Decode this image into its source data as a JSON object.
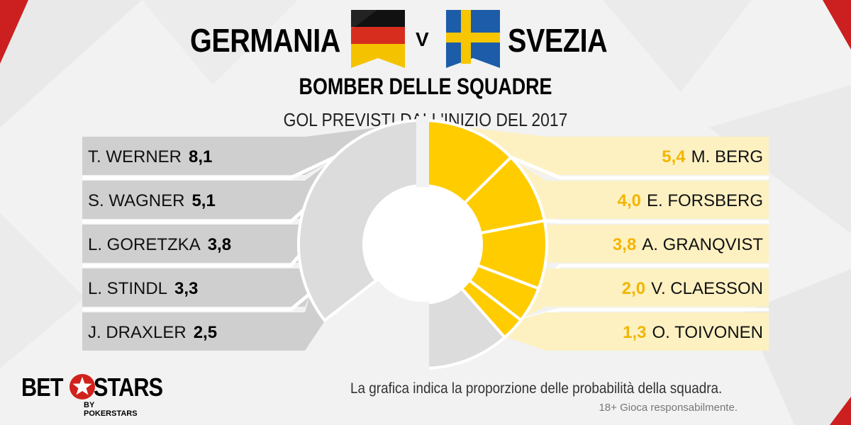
{
  "header": {
    "team_left": "GERMANIA",
    "vs": "V",
    "team_right": "SVEZIA",
    "subtitle": "BOMBER DELLE SQUADRE",
    "caption": "GOL PREVISTI DALL'INIZIO  DEL 2017"
  },
  "footer": {
    "note": "La grafica indica la proporzione delle probabilità della squadra.",
    "disclaimer": "18+ Gioca responsabilmente."
  },
  "logo": {
    "bet": "BET",
    "stars": "STARS",
    "sub": "BY POKERSTARS"
  },
  "colors": {
    "left_team": "#000000",
    "left_band": "#cfcfcf",
    "right_team": "#ffcc00",
    "right_band": "#fdf1c2",
    "remainder": "#dcdcdc",
    "accent_red": "#cc1f1f",
    "value_right": "#f2b600"
  },
  "chart_data": [
    {
      "type": "pie",
      "variant": "half-donut",
      "side": "left",
      "team": "GERMANIA",
      "categories": [
        "T. WERNER",
        "S. WAGNER",
        "L. GORETZKA",
        "L. STINDL",
        "J. DRAXLER"
      ],
      "values": [
        8.1,
        5.1,
        3.8,
        3.3,
        2.5
      ],
      "value_labels": [
        "8,1",
        "5,1",
        "3,8",
        "3,3",
        "2,5"
      ],
      "remainder_fraction": 0.29
    },
    {
      "type": "pie",
      "variant": "half-donut",
      "side": "right",
      "team": "SVEZIA",
      "categories": [
        "M. BERG",
        "E. FORSBERG",
        "A. GRANQVIST",
        "V. CLAESSON",
        "O. TOIVONEN"
      ],
      "values": [
        5.4,
        4.0,
        3.8,
        2.0,
        1.3
      ],
      "value_labels": [
        "5,4",
        "4,0",
        "3,8",
        "2,0",
        "1,3"
      ],
      "remainder_fraction": 0.23
    }
  ]
}
